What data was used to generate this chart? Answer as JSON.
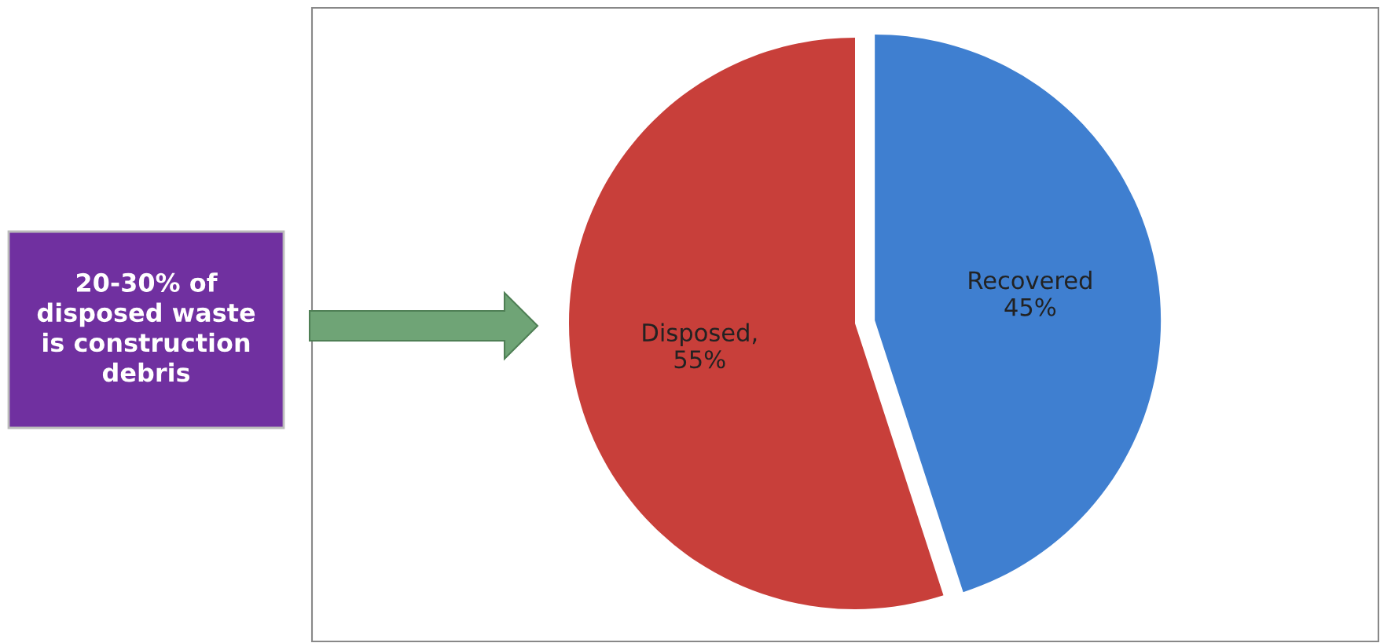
{
  "chart_data": {
    "type": "pie",
    "categories": [
      "Recovered",
      "Disposed"
    ],
    "values": [
      45,
      55
    ],
    "value_labels": [
      "\n45%",
      ",\n55%"
    ],
    "colors": [
      "#3f7fd0",
      "#c83f3a"
    ],
    "annotations": [
      "20-30% of\ndisposed waste\nis construction\ndebris"
    ]
  }
}
